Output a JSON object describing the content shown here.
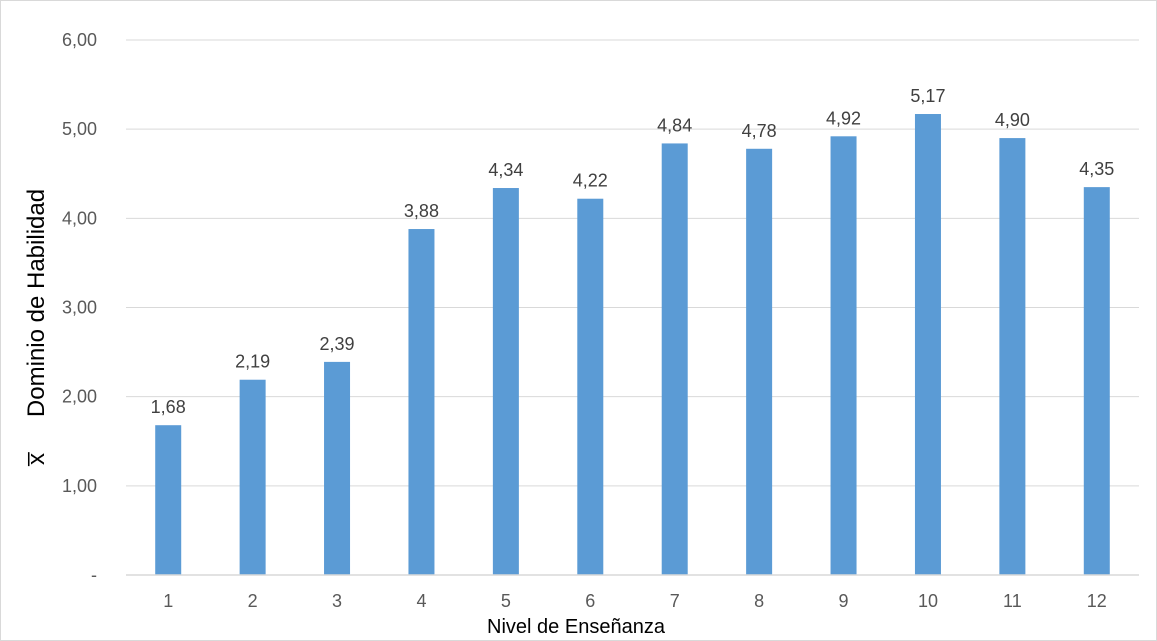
{
  "chart_data": {
    "type": "bar",
    "categories": [
      "1",
      "2",
      "3",
      "4",
      "5",
      "6",
      "7",
      "8",
      "9",
      "10",
      "11",
      "12"
    ],
    "values": [
      1.68,
      2.19,
      2.39,
      3.88,
      4.34,
      4.22,
      4.84,
      4.78,
      4.92,
      5.17,
      4.9,
      4.35
    ],
    "value_labels": [
      "1,68",
      "2,19",
      "2,39",
      "3,88",
      "4,34",
      "4,22",
      "4,84",
      "4,78",
      "4,92",
      "5,17",
      "4,90",
      "4,35"
    ],
    "title": "",
    "xlabel": "Nivel de Enseñanza",
    "ylabel": "Dominio de Habilidad",
    "ylabel_symbol": "x̅",
    "ylim": [
      0,
      6
    ],
    "yticks": [
      0,
      1,
      2,
      3,
      4,
      5,
      6
    ],
    "ytick_labels": [
      "-",
      "1,00",
      "2,00",
      "3,00",
      "4,00",
      "5,00",
      "6,00"
    ],
    "grid": true,
    "legend": "none",
    "bar_color": "#5b9bd5",
    "grid_color": "#d9d9d9",
    "axis_color": "#d9d9d9"
  }
}
